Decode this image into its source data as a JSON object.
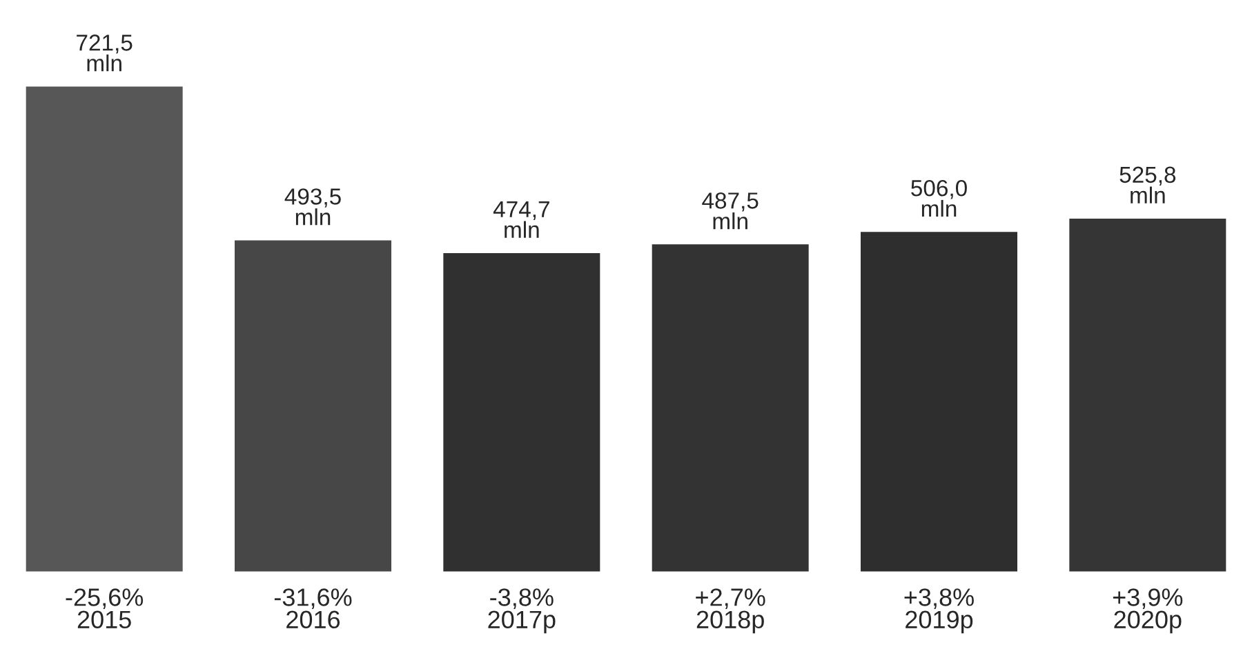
{
  "chart_data": {
    "type": "bar",
    "categories": [
      "-25,6%\n2015",
      "-31,6%\n2016",
      "-3,8%\n2017p",
      "+2,7%\n2018p",
      "+3,8%\n2019p",
      "+3,9%\n2020p"
    ],
    "values": [
      721.5,
      493.5,
      474.7,
      487.5,
      506.0,
      525.8
    ],
    "value_labels": [
      "721,5\nmln",
      "493,5\nmln",
      "474,7\nmln",
      "487,5\nmln",
      "506,0\nmln",
      "525,8\nmln"
    ],
    "colors": [
      "#575757",
      "#474747",
      "#303030",
      "#333333",
      "#2e2e2e",
      "#353535"
    ],
    "grid": false,
    "legend": false
  }
}
